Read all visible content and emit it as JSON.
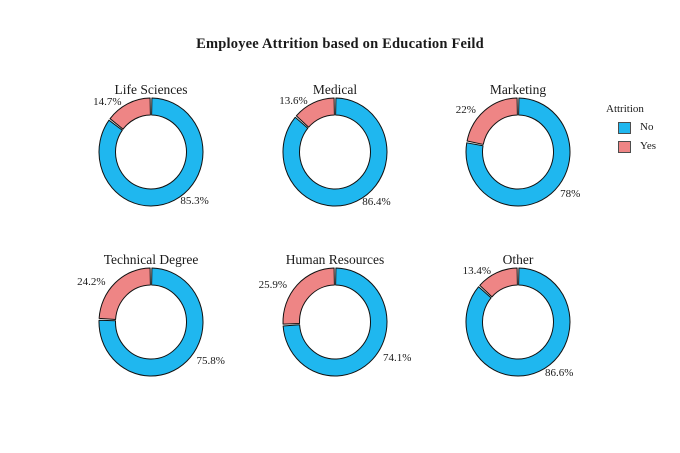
{
  "page_title": "Employee Attrition based on Education Feild",
  "colors": {
    "no": "#1FB7EF",
    "yes": "#EE8585",
    "edge": "#111111",
    "text": "#1a1a1a",
    "background": "#ffffff"
  },
  "legend": {
    "title": "Attrition",
    "entries": [
      {
        "label": "No",
        "color": "#1FB7EF"
      },
      {
        "label": "Yes",
        "color": "#EE8585"
      }
    ]
  },
  "chart_data": {
    "type": "pie",
    "subtype": "donut",
    "title": "Employee Attrition based on Education Feild",
    "start_angle": "12-oclock",
    "direction": "clockwise",
    "grid": "2x3",
    "legend": {
      "title": "Attrition",
      "position": "right",
      "entries": [
        "No",
        "Yes"
      ]
    },
    "charts": [
      {
        "title": "Life Sciences",
        "slices": [
          {
            "label": "No",
            "value": 85.3,
            "text": "85.3%"
          },
          {
            "label": "Yes",
            "value": 14.7,
            "text": "14.7%"
          }
        ]
      },
      {
        "title": "Medical",
        "slices": [
          {
            "label": "No",
            "value": 86.4,
            "text": "86.4%"
          },
          {
            "label": "Yes",
            "value": 13.6,
            "text": "13.6%"
          }
        ]
      },
      {
        "title": "Marketing",
        "slices": [
          {
            "label": "No",
            "value": 78,
            "text": "78%"
          },
          {
            "label": "Yes",
            "value": 22,
            "text": "22%"
          }
        ]
      },
      {
        "title": "Technical Degree",
        "slices": [
          {
            "label": "No",
            "value": 75.8,
            "text": "75.8%"
          },
          {
            "label": "Yes",
            "value": 24.2,
            "text": "24.2%"
          }
        ]
      },
      {
        "title": "Human Resources",
        "slices": [
          {
            "label": "No",
            "value": 74.1,
            "text": "74.1%"
          },
          {
            "label": "Yes",
            "value": 25.9,
            "text": "25.9%"
          }
        ]
      },
      {
        "title": "Other",
        "slices": [
          {
            "label": "No",
            "value": 86.6,
            "text": "86.6%"
          },
          {
            "label": "Yes",
            "value": 13.4,
            "text": "13.4%"
          }
        ]
      }
    ]
  }
}
